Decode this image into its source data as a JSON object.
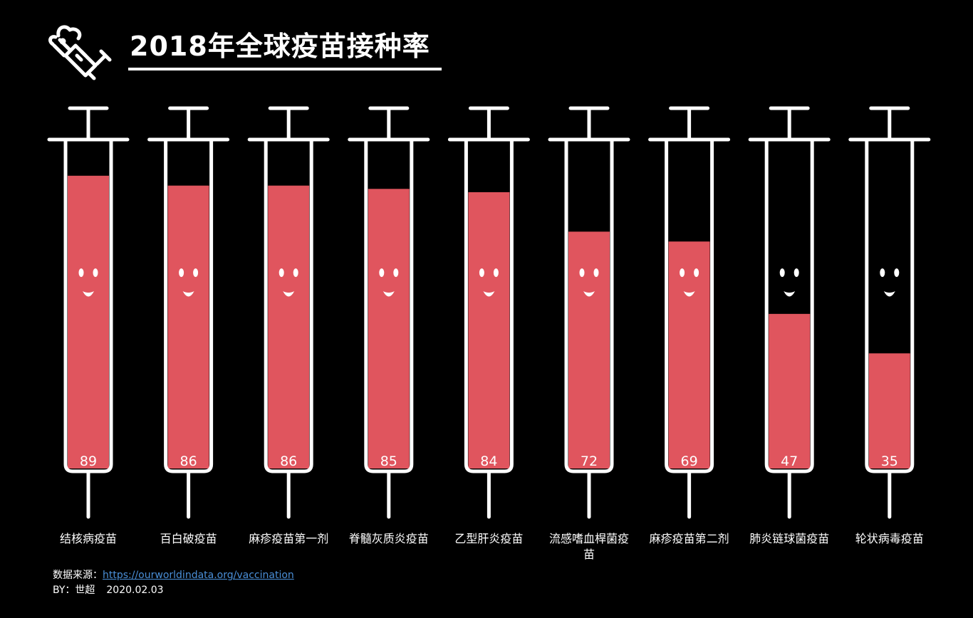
{
  "title": "2018年全球疫苗接种率",
  "source": {
    "label": "数据来源：",
    "url": "https://ourworldindata.org/vaccination"
  },
  "byline": {
    "by": "BY：世超",
    "date": "2020.02.03"
  },
  "colors": {
    "fill": "#e0555e",
    "outline": "#ffffff",
    "background": "#000000"
  },
  "icons": [
    "syringe-logo-icon",
    "smiley-face-icon"
  ],
  "chart_data": {
    "type": "bar",
    "categories": [
      "结核病疫苗",
      "百白破疫苗",
      "麻疹疫苗第一剂",
      "脊髓灰质炎疫苗",
      "乙型肝炎疫苗",
      "流感嗜血桿菌疫苗",
      "麻疹疫苗第二剂",
      "肺炎链球菌疫苗",
      "轮状病毒疫苗"
    ],
    "values": [
      89,
      86,
      86,
      85,
      84,
      72,
      69,
      47,
      35
    ],
    "ylim": [
      0,
      100
    ],
    "title": "2018年全球疫苗接种率"
  }
}
